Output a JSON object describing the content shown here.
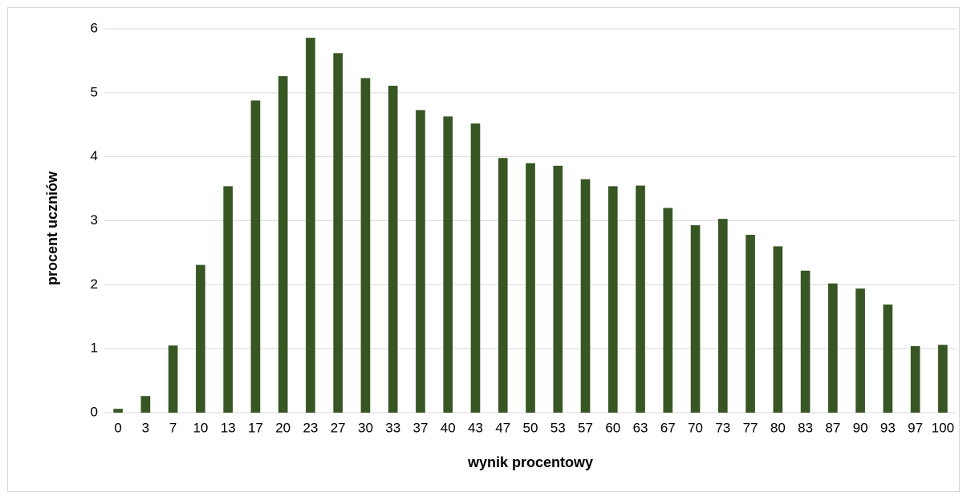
{
  "chart_data": {
    "type": "bar",
    "x_label": "wynik procentowy",
    "y_label": "procent uczniów",
    "categories": [
      "0",
      "3",
      "7",
      "10",
      "13",
      "17",
      "20",
      "23",
      "27",
      "30",
      "33",
      "37",
      "40",
      "43",
      "47",
      "50",
      "53",
      "57",
      "60",
      "63",
      "67",
      "70",
      "73",
      "77",
      "80",
      "83",
      "87",
      "90",
      "93",
      "97",
      "100"
    ],
    "values": [
      0.06,
      0.26,
      1.05,
      2.31,
      3.54,
      4.88,
      5.26,
      5.86,
      5.62,
      5.23,
      5.11,
      4.73,
      4.63,
      4.52,
      3.98,
      3.9,
      3.86,
      3.65,
      3.54,
      3.55,
      3.2,
      2.93,
      3.03,
      2.78,
      2.6,
      2.22,
      2.02,
      1.94,
      1.69,
      1.04,
      1.06
    ],
    "color": "#375623",
    "ylim": [
      0,
      6
    ],
    "yticks": [
      0,
      1,
      2,
      3,
      4,
      5,
      6
    ],
    "grid": true
  }
}
